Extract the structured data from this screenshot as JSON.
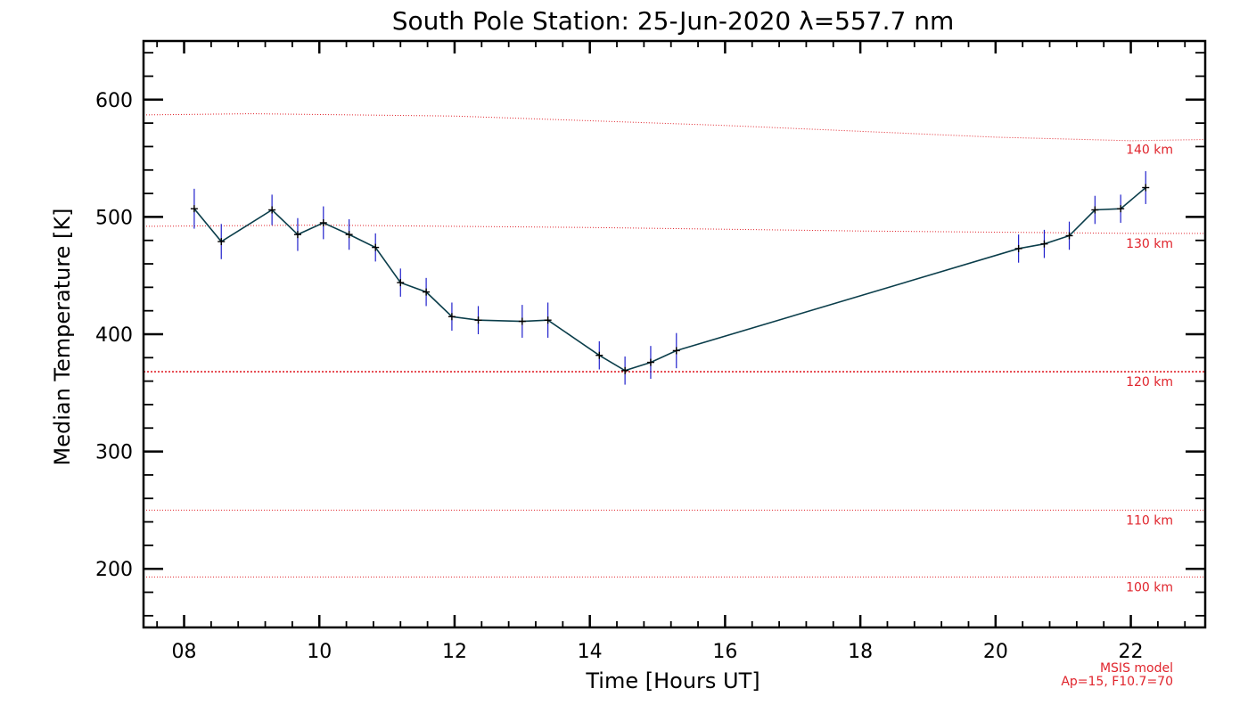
{
  "chart_data": {
    "type": "line",
    "title": "South Pole Station: 25-Jun-2020 λ=557.7 nm",
    "xlabel": "Time [Hours UT]",
    "ylabel": "Median Temperature [K]",
    "xlim": [
      7.4,
      23.1
    ],
    "ylim": [
      150,
      650
    ],
    "x_ticks": [
      8,
      10,
      12,
      14,
      16,
      18,
      20,
      22
    ],
    "x_tick_labels": [
      "08",
      "10",
      "12",
      "14",
      "16",
      "18",
      "20",
      "22"
    ],
    "y_ticks": [
      200,
      300,
      400,
      500,
      600
    ],
    "y_tick_labels": [
      "200",
      "300",
      "400",
      "500",
      "600"
    ],
    "series": [
      {
        "x": [
          8.15,
          8.55,
          9.3,
          9.68,
          10.06,
          10.44,
          10.83,
          11.2,
          11.58,
          11.96,
          12.35,
          13.0,
          13.38,
          14.14,
          14.52,
          14.9,
          15.28,
          20.34,
          20.72,
          21.09,
          21.47,
          21.85,
          22.22
        ],
        "y": [
          507,
          479,
          506,
          485,
          495,
          485,
          474,
          444,
          436,
          415,
          412,
          411,
          412,
          382,
          369,
          376,
          386,
          473,
          477,
          484,
          506,
          507,
          525
        ],
        "err": [
          17,
          15,
          13,
          14,
          14,
          13,
          12,
          12,
          12,
          12,
          12,
          14,
          15,
          12,
          12,
          14,
          15,
          12,
          12,
          12,
          12,
          12,
          14
        ],
        "color": "#0a3d4a",
        "marker": "plus",
        "errorbar_color": "#2020cc"
      }
    ],
    "reference_lines": [
      {
        "label": "140 km",
        "x": [
          7.4,
          9.0,
          10.5,
          12.0,
          14.0,
          16.0,
          18.0,
          20.0,
          22.0,
          23.1
        ],
        "y": [
          587,
          588,
          587,
          586,
          582,
          578,
          573,
          568,
          565,
          566
        ],
        "style": "dotted"
      },
      {
        "label": "130 km",
        "x": [
          7.4,
          10.0,
          14.0,
          18.0,
          22.0,
          23.1
        ],
        "y": [
          492,
          493,
          491,
          488,
          486,
          486
        ],
        "style": "dotted"
      },
      {
        "label": "120 km",
        "x": [
          7.4,
          23.1
        ],
        "y": [
          368,
          368
        ],
        "style": "dotted"
      },
      {
        "label": "110 km",
        "x": [
          7.4,
          23.1
        ],
        "y": [
          250,
          250
        ],
        "style": "dotted"
      },
      {
        "label": "100 km",
        "x": [
          7.4,
          23.1
        ],
        "y": [
          193,
          193
        ],
        "style": "dotted"
      }
    ],
    "reference_color": "#e0242c",
    "grid": false,
    "model_note": [
      "MSIS model",
      "Ap=15, F10.7=70"
    ]
  }
}
